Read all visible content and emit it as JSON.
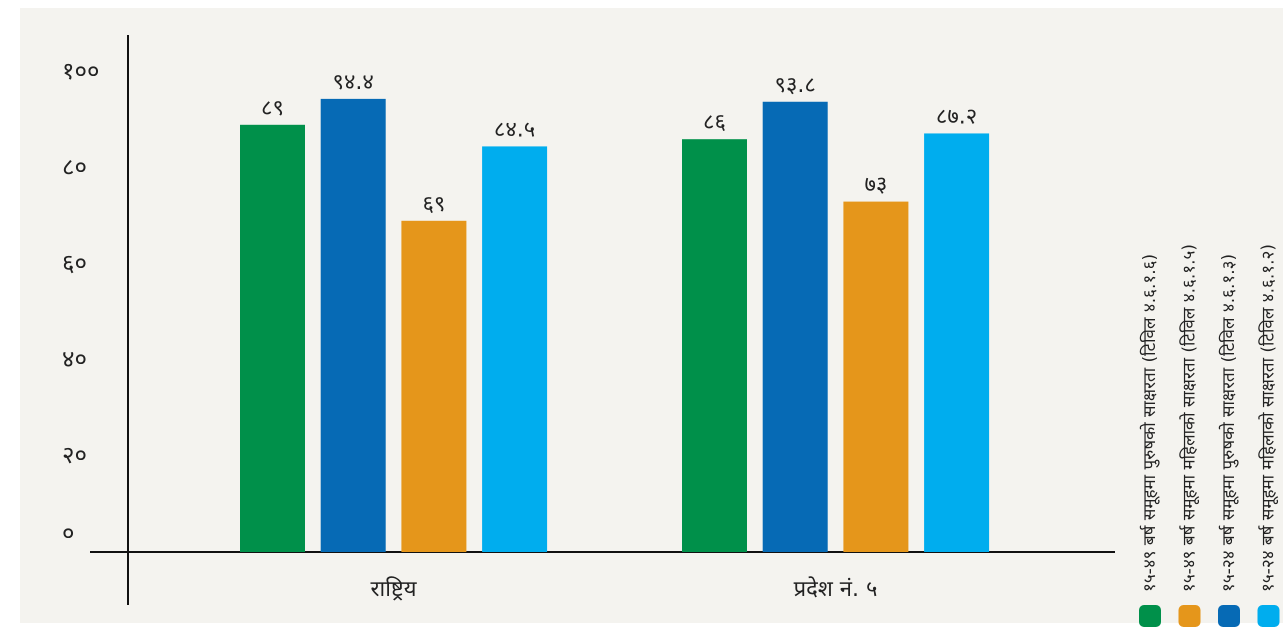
{
  "chart_data": {
    "type": "bar",
    "categories": [
      "राष्ट्रिय",
      "प्रदेश नं. ५"
    ],
    "series": [
      {
        "name": "१५-४९ बर्ष समूहमा पुरुषको साक्षरता (टिविल ४.६.१.६)",
        "color": "#00904a",
        "values": [
          89,
          86
        ],
        "value_labels": [
          "८९",
          "८६"
        ]
      },
      {
        "name": "१५-४९ बर्ष समूहमा महिलाको साक्षरता (टिविल ४.६.१.५)",
        "color": "#e5961b",
        "values": [
          69,
          73
        ],
        "value_labels": [
          "६९",
          "७३"
        ]
      },
      {
        "name": "१५-२४ बर्ष समूहमा पुरुषको साक्षरता (टिविल ४.६.१.३)",
        "color": "#066ab5",
        "values": [
          94.4,
          93.8
        ],
        "value_labels": [
          "९४.४",
          "९३.८"
        ]
      },
      {
        "name": "१५-२४ बर्ष समूहमा महिलाको साक्षरता (टिविल ४.६.१.२)",
        "color": "#00adee",
        "values": [
          84.5,
          87.2
        ],
        "value_labels": [
          "८४.५",
          "८७.२"
        ]
      }
    ],
    "ylim": [
      0,
      100
    ],
    "yticks": [
      {
        "value": 0,
        "label": "०"
      },
      {
        "value": 20,
        "label": "२०"
      },
      {
        "value": 40,
        "label": "४०"
      },
      {
        "value": 60,
        "label": "६०"
      },
      {
        "value": 80,
        "label": "८०"
      },
      {
        "value": 100,
        "label": "१००"
      }
    ],
    "legend": "right"
  }
}
